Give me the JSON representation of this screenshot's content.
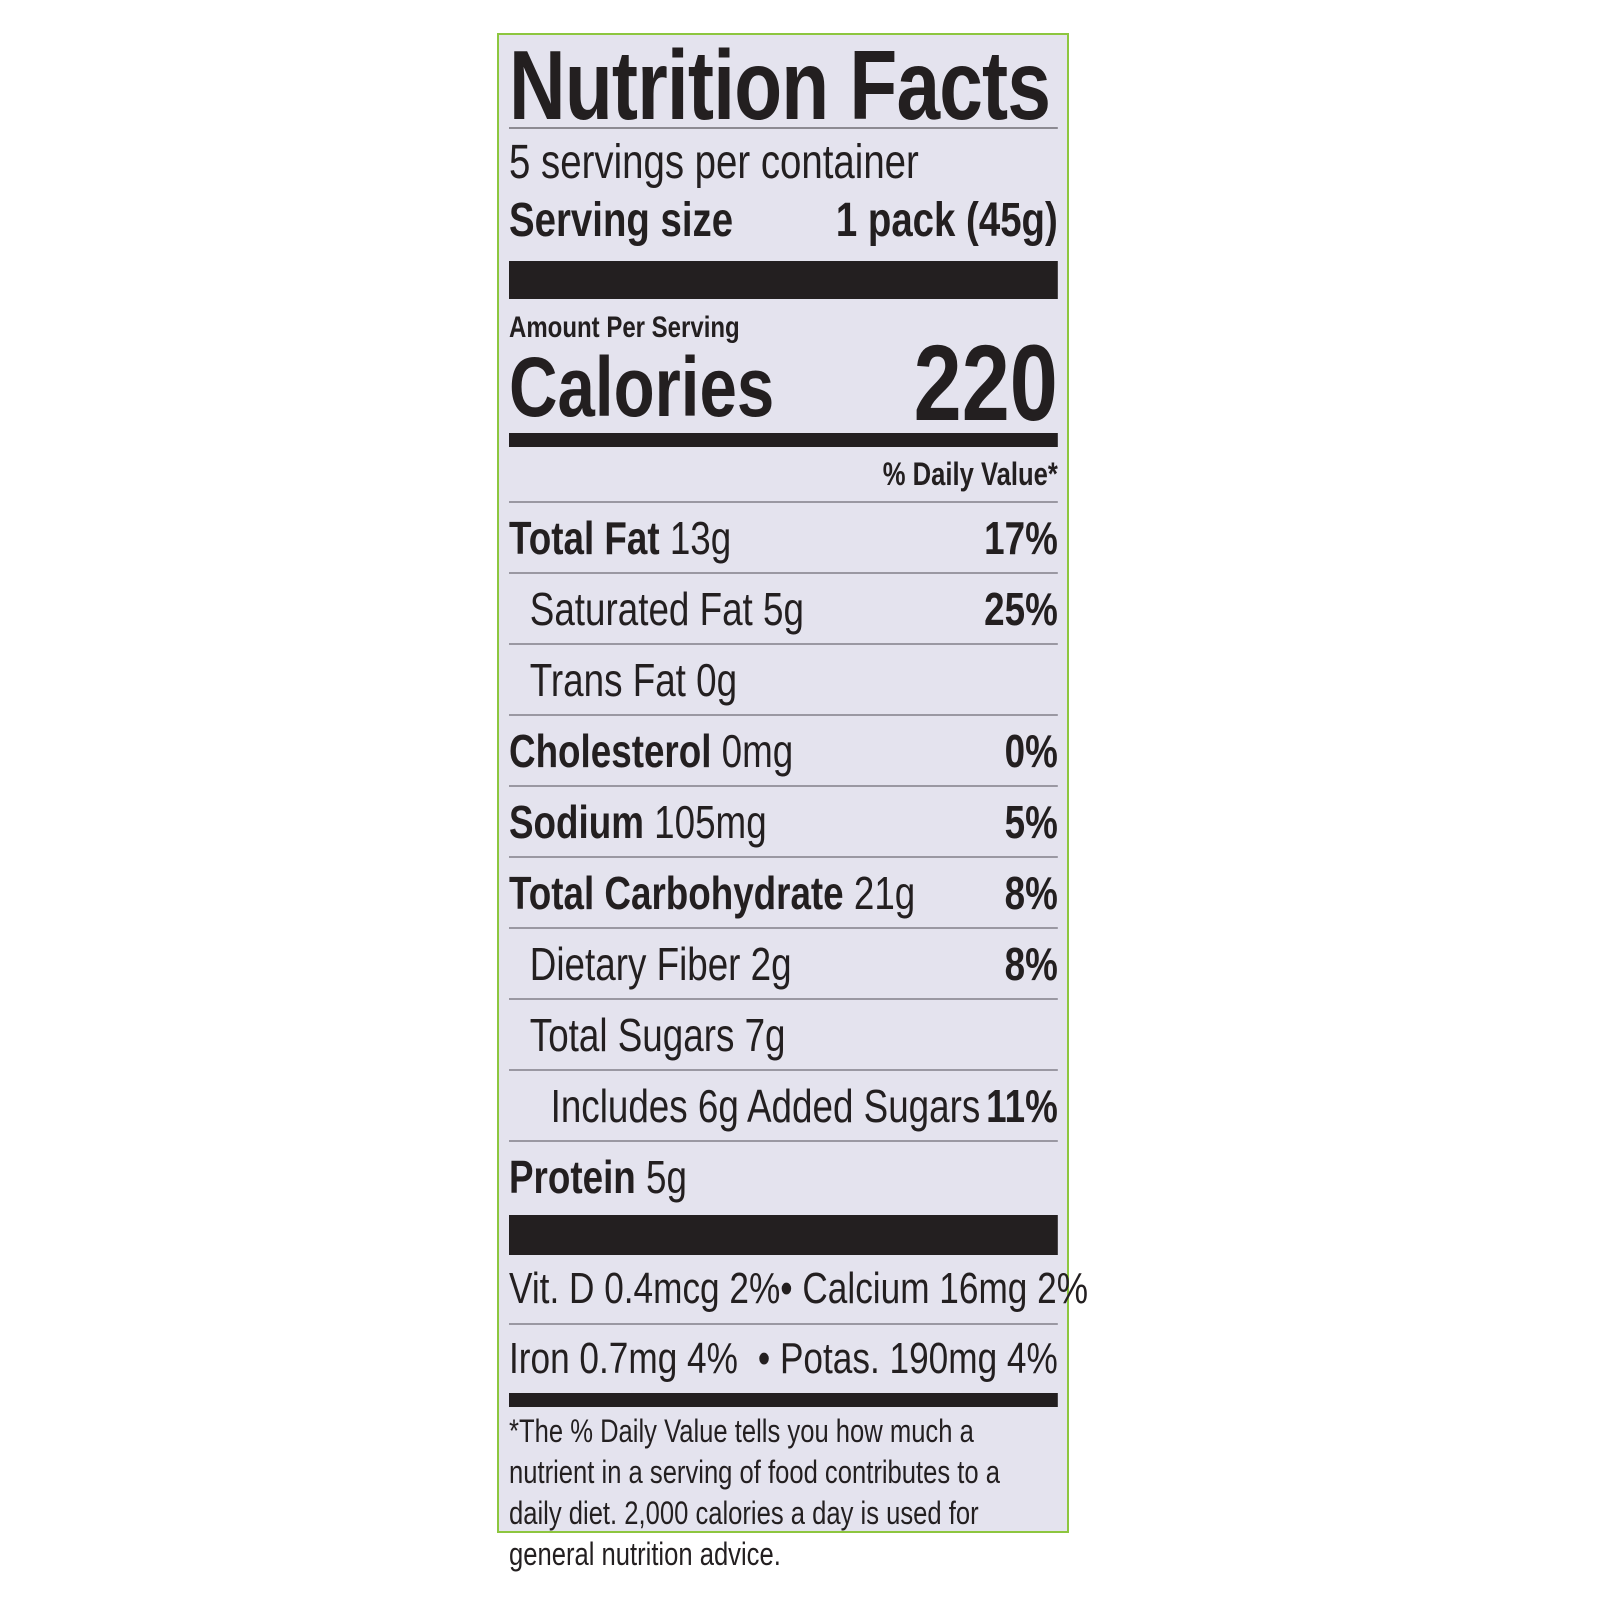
{
  "title": "Nutrition Facts",
  "servings_per_container": "5 servings per container",
  "serving_size": {
    "label": "Serving size",
    "value": "1 pack (45g)"
  },
  "amount_per_serving": "Amount Per Serving",
  "calories": {
    "label": "Calories",
    "value": "220"
  },
  "daily_value_header": "% Daily Value*",
  "nutrients": [
    {
      "name": "Total Fat",
      "amount": "13g",
      "dv": "17%"
    },
    {
      "name": "Saturated Fat",
      "amount": "5g",
      "dv": "25%"
    },
    {
      "name": "Trans Fat",
      "amount": "0g",
      "dv": ""
    },
    {
      "name": "Cholesterol",
      "amount": "0mg",
      "dv": "0%"
    },
    {
      "name": "Sodium",
      "amount": "105mg",
      "dv": "5%"
    },
    {
      "name": "Total Carbohydrate",
      "amount": "21g",
      "dv": "8%"
    },
    {
      "name": "Dietary Fiber",
      "amount": "2g",
      "dv": "8%"
    },
    {
      "name": "Total Sugars",
      "amount": "7g",
      "dv": ""
    },
    {
      "name": "Includes 6g Added Sugars",
      "amount": "",
      "dv": "11%"
    },
    {
      "name": "Protein",
      "amount": "5g",
      "dv": ""
    }
  ],
  "vitamins": [
    {
      "left": "Vit. D 0.4mcg 2%",
      "right": "• Calcium 16mg 2%"
    },
    {
      "left": "Iron 0.7mg 4%",
      "right": "• Potas. 190mg 4%"
    }
  ],
  "footnote": "*The % Daily Value tells you how much a nutrient in a serving of food contributes to a daily diet. 2,000 calories a day is used for general nutrition advice.",
  "colors": {
    "background": "#e4e3ee",
    "text": "#231f20",
    "border": "#8dc63f"
  }
}
